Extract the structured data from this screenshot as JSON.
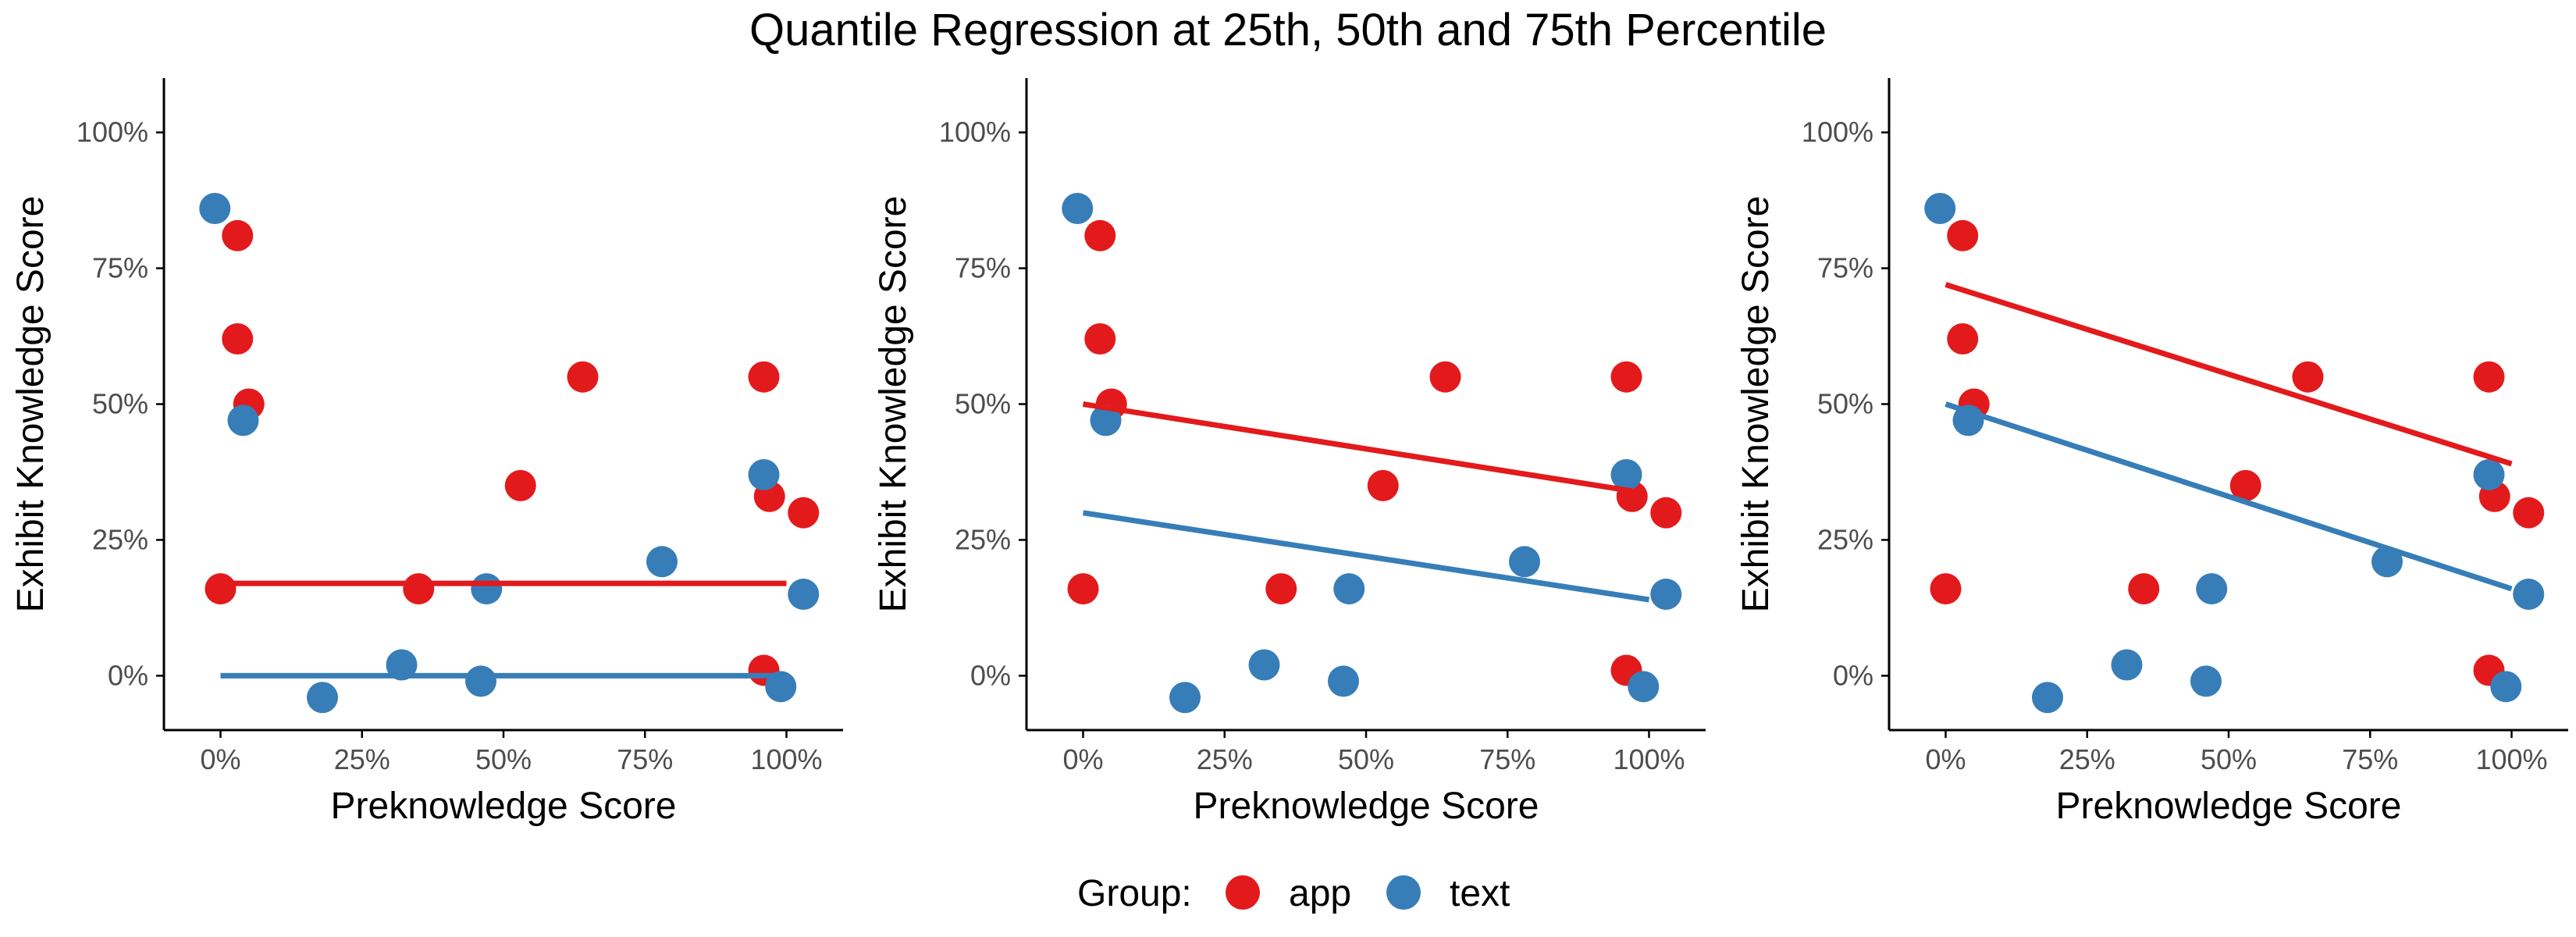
{
  "title": "Quantile Regression at 25th, 50th and 75th Percentile",
  "colors": {
    "app": "#e31a1c",
    "text": "#377eb8",
    "axis": "#000000",
    "tick_label": "#4d4d4d"
  },
  "legend": {
    "title": "Group:",
    "entries": [
      {
        "key": "app",
        "label": "app"
      },
      {
        "key": "text",
        "label": "text"
      }
    ]
  },
  "chart_data": [
    {
      "type": "scatter",
      "panel": "25th percentile",
      "xlabel": "Preknowledge Score",
      "ylabel": "Exhibit Knowledge Score",
      "xlim": [
        -0.1,
        1.1
      ],
      "ylim": [
        -0.1,
        1.1
      ],
      "xticks": [
        0,
        0.25,
        0.5,
        0.75,
        1.0
      ],
      "yticks": [
        0,
        0.25,
        0.5,
        0.75,
        1.0
      ],
      "xtick_labels": [
        "0%",
        "25%",
        "50%",
        "75%",
        "100%"
      ],
      "ytick_labels": [
        "0%",
        "25%",
        "50%",
        "75%",
        "100%"
      ],
      "points": [
        {
          "group": "app",
          "x": 0.03,
          "y": 0.81
        },
        {
          "group": "app",
          "x": 0.03,
          "y": 0.62
        },
        {
          "group": "app",
          "x": 0.05,
          "y": 0.5
        },
        {
          "group": "app",
          "x": 0.0,
          "y": 0.16
        },
        {
          "group": "app",
          "x": 0.35,
          "y": 0.16
        },
        {
          "group": "app",
          "x": 0.53,
          "y": 0.35
        },
        {
          "group": "app",
          "x": 0.64,
          "y": 0.55
        },
        {
          "group": "app",
          "x": 0.96,
          "y": 0.55
        },
        {
          "group": "app",
          "x": 0.97,
          "y": 0.33
        },
        {
          "group": "app",
          "x": 1.03,
          "y": 0.3
        },
        {
          "group": "app",
          "x": 0.96,
          "y": 0.01
        },
        {
          "group": "text",
          "x": -0.01,
          "y": 0.86
        },
        {
          "group": "text",
          "x": 0.04,
          "y": 0.47
        },
        {
          "group": "text",
          "x": 0.18,
          "y": -0.04
        },
        {
          "group": "text",
          "x": 0.32,
          "y": 0.02
        },
        {
          "group": "text",
          "x": 0.46,
          "y": -0.01
        },
        {
          "group": "text",
          "x": 0.47,
          "y": 0.16
        },
        {
          "group": "text",
          "x": 0.78,
          "y": 0.21
        },
        {
          "group": "text",
          "x": 0.96,
          "y": 0.37
        },
        {
          "group": "text",
          "x": 0.99,
          "y": -0.02
        },
        {
          "group": "text",
          "x": 1.03,
          "y": 0.15
        }
      ],
      "lines": [
        {
          "group": "app",
          "x": [
            0.0,
            1.0
          ],
          "y": [
            0.17,
            0.17
          ]
        },
        {
          "group": "text",
          "x": [
            0.0,
            1.0
          ],
          "y": [
            0.0,
            0.0
          ]
        }
      ]
    },
    {
      "type": "scatter",
      "panel": "50th percentile",
      "xlabel": "Preknowledge Score",
      "ylabel": "Exhibit Knowledge Score",
      "xlim": [
        -0.1,
        1.1
      ],
      "ylim": [
        -0.1,
        1.1
      ],
      "xticks": [
        0,
        0.25,
        0.5,
        0.75,
        1.0
      ],
      "yticks": [
        0,
        0.25,
        0.5,
        0.75,
        1.0
      ],
      "xtick_labels": [
        "0%",
        "25%",
        "50%",
        "75%",
        "100%"
      ],
      "ytick_labels": [
        "0%",
        "25%",
        "50%",
        "75%",
        "100%"
      ],
      "points": [
        {
          "group": "app",
          "x": 0.03,
          "y": 0.81
        },
        {
          "group": "app",
          "x": 0.03,
          "y": 0.62
        },
        {
          "group": "app",
          "x": 0.05,
          "y": 0.5
        },
        {
          "group": "app",
          "x": 0.0,
          "y": 0.16
        },
        {
          "group": "app",
          "x": 0.35,
          "y": 0.16
        },
        {
          "group": "app",
          "x": 0.53,
          "y": 0.35
        },
        {
          "group": "app",
          "x": 0.64,
          "y": 0.55
        },
        {
          "group": "app",
          "x": 0.96,
          "y": 0.55
        },
        {
          "group": "app",
          "x": 0.97,
          "y": 0.33
        },
        {
          "group": "app",
          "x": 1.03,
          "y": 0.3
        },
        {
          "group": "app",
          "x": 0.96,
          "y": 0.01
        },
        {
          "group": "text",
          "x": -0.01,
          "y": 0.86
        },
        {
          "group": "text",
          "x": 0.04,
          "y": 0.47
        },
        {
          "group": "text",
          "x": 0.18,
          "y": -0.04
        },
        {
          "group": "text",
          "x": 0.32,
          "y": 0.02
        },
        {
          "group": "text",
          "x": 0.46,
          "y": -0.01
        },
        {
          "group": "text",
          "x": 0.47,
          "y": 0.16
        },
        {
          "group": "text",
          "x": 0.78,
          "y": 0.21
        },
        {
          "group": "text",
          "x": 0.96,
          "y": 0.37
        },
        {
          "group": "text",
          "x": 0.99,
          "y": -0.02
        },
        {
          "group": "text",
          "x": 1.03,
          "y": 0.15
        }
      ],
      "lines": [
        {
          "group": "app",
          "x": [
            0.0,
            0.97
          ],
          "y": [
            0.5,
            0.34
          ]
        },
        {
          "group": "text",
          "x": [
            0.0,
            1.0
          ],
          "y": [
            0.3,
            0.14
          ]
        }
      ]
    },
    {
      "type": "scatter",
      "panel": "75th percentile",
      "xlabel": "Preknowledge Score",
      "ylabel": "Exhibit Knowledge Score",
      "xlim": [
        -0.1,
        1.1
      ],
      "ylim": [
        -0.1,
        1.1
      ],
      "xticks": [
        0,
        0.25,
        0.5,
        0.75,
        1.0
      ],
      "yticks": [
        0,
        0.25,
        0.5,
        0.75,
        1.0
      ],
      "xtick_labels": [
        "0%",
        "25%",
        "50%",
        "75%",
        "100%"
      ],
      "ytick_labels": [
        "0%",
        "25%",
        "50%",
        "75%",
        "100%"
      ],
      "points": [
        {
          "group": "app",
          "x": 0.03,
          "y": 0.81
        },
        {
          "group": "app",
          "x": 0.03,
          "y": 0.62
        },
        {
          "group": "app",
          "x": 0.05,
          "y": 0.5
        },
        {
          "group": "app",
          "x": 0.0,
          "y": 0.16
        },
        {
          "group": "app",
          "x": 0.35,
          "y": 0.16
        },
        {
          "group": "app",
          "x": 0.53,
          "y": 0.35
        },
        {
          "group": "app",
          "x": 0.64,
          "y": 0.55
        },
        {
          "group": "app",
          "x": 0.96,
          "y": 0.55
        },
        {
          "group": "app",
          "x": 0.97,
          "y": 0.33
        },
        {
          "group": "app",
          "x": 1.03,
          "y": 0.3
        },
        {
          "group": "app",
          "x": 0.96,
          "y": 0.01
        },
        {
          "group": "text",
          "x": -0.01,
          "y": 0.86
        },
        {
          "group": "text",
          "x": 0.04,
          "y": 0.47
        },
        {
          "group": "text",
          "x": 0.18,
          "y": -0.04
        },
        {
          "group": "text",
          "x": 0.32,
          "y": 0.02
        },
        {
          "group": "text",
          "x": 0.46,
          "y": -0.01
        },
        {
          "group": "text",
          "x": 0.47,
          "y": 0.16
        },
        {
          "group": "text",
          "x": 0.78,
          "y": 0.21
        },
        {
          "group": "text",
          "x": 0.96,
          "y": 0.37
        },
        {
          "group": "text",
          "x": 0.99,
          "y": -0.02
        },
        {
          "group": "text",
          "x": 1.03,
          "y": 0.15
        }
      ],
      "lines": [
        {
          "group": "app",
          "x": [
            0.0,
            1.0
          ],
          "y": [
            0.72,
            0.39
          ]
        },
        {
          "group": "text",
          "x": [
            0.0,
            1.0
          ],
          "y": [
            0.5,
            0.16
          ]
        }
      ]
    }
  ]
}
